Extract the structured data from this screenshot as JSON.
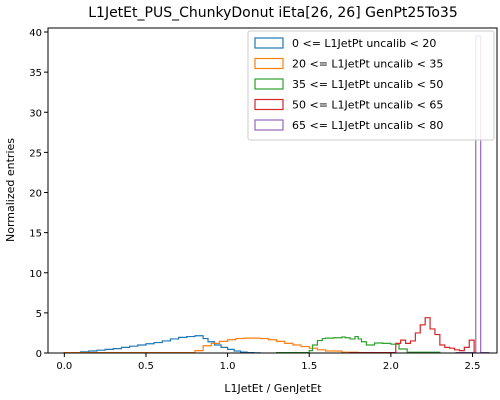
{
  "chart_data": {
    "type": "histogram-step",
    "title": "L1JetEt_PUS_ChunkyDonut iEta[26, 26] GenPt25To35",
    "xlabel": "L1JetEt / GenJetEt",
    "ylabel": "Normalized entries",
    "xlim": [
      -0.1,
      2.65
    ],
    "ylim": [
      0,
      40.5
    ],
    "xticks": [
      0.0,
      0.5,
      1.0,
      1.5,
      2.0,
      2.5
    ],
    "xtick_labels": [
      "0.0",
      "0.5",
      "1.0",
      "1.5",
      "2.0",
      "2.5"
    ],
    "yticks": [
      0,
      5,
      10,
      15,
      20,
      25,
      30,
      35,
      40
    ],
    "ytick_labels": [
      "0",
      "5",
      "10",
      "15",
      "20",
      "25",
      "30",
      "35",
      "40"
    ],
    "legend_position": "upper-right",
    "series": [
      {
        "name": "0 <= L1JetPt uncalib < 20",
        "color": "#1f77b4",
        "edges": [
          0.0,
          0.1,
          0.15,
          0.2,
          0.25,
          0.3,
          0.35,
          0.4,
          0.45,
          0.5,
          0.55,
          0.6,
          0.65,
          0.7,
          0.75,
          0.8,
          0.85,
          0.88,
          0.92,
          0.96,
          1.0,
          1.04,
          1.08,
          1.12,
          1.16,
          1.2
        ],
        "values": [
          0.05,
          0.15,
          0.25,
          0.35,
          0.45,
          0.55,
          0.7,
          0.85,
          1.0,
          1.15,
          1.3,
          1.5,
          1.75,
          1.95,
          2.05,
          2.15,
          1.8,
          1.4,
          1.0,
          0.7,
          0.45,
          0.25,
          0.12,
          0.05,
          0.02
        ]
      },
      {
        "name": "20 <= L1JetPt uncalib < 35",
        "color": "#ff7f0e",
        "edges": [
          0.0,
          0.8,
          0.85,
          0.9,
          0.95,
          1.0,
          1.05,
          1.1,
          1.15,
          1.2,
          1.25,
          1.3,
          1.35,
          1.4,
          1.45,
          1.5,
          1.55,
          1.6,
          1.7,
          1.8
        ],
        "values": [
          0.05,
          0.3,
          0.9,
          1.2,
          1.45,
          1.65,
          1.8,
          1.85,
          1.85,
          1.8,
          1.65,
          1.45,
          1.2,
          1.0,
          0.8,
          0.6,
          0.4,
          0.25,
          0.1
        ]
      },
      {
        "name": "35 <= L1JetPt uncalib < 50",
        "color": "#2ca02c",
        "edges": [
          1.3,
          1.5,
          1.52,
          1.55,
          1.58,
          1.6,
          1.65,
          1.7,
          1.72,
          1.75,
          1.78,
          1.8,
          1.82,
          1.85,
          1.9,
          1.95,
          2.0,
          2.05,
          2.1,
          2.3
        ],
        "values": [
          0.05,
          0.3,
          1.0,
          1.55,
          1.8,
          1.85,
          1.9,
          2.0,
          1.9,
          1.75,
          2.05,
          1.75,
          1.4,
          1.0,
          1.25,
          1.2,
          1.1,
          0.5,
          0.1
        ]
      },
      {
        "name": "50 <= L1JetPt uncalib < 65",
        "color": "#d62728",
        "edges": [
          1.75,
          2.03,
          2.06,
          2.09,
          2.12,
          2.15,
          2.18,
          2.21,
          2.24,
          2.27,
          2.3,
          2.33,
          2.36,
          2.39,
          2.42,
          2.45,
          2.48,
          2.51
        ],
        "values": [
          0.05,
          1.2,
          1.6,
          1.2,
          1.5,
          2.5,
          3.5,
          4.4,
          3.0,
          2.3,
          1.0,
          0.7,
          0.6,
          0.4,
          0.3,
          0.7,
          1.6
        ]
      },
      {
        "name": "65 <= L1JetPt uncalib < 80",
        "color": "#9467bd",
        "edges": [
          2.4,
          2.52,
          2.55,
          2.6
        ],
        "values": [
          0.05,
          39.5,
          0.05
        ]
      }
    ]
  }
}
